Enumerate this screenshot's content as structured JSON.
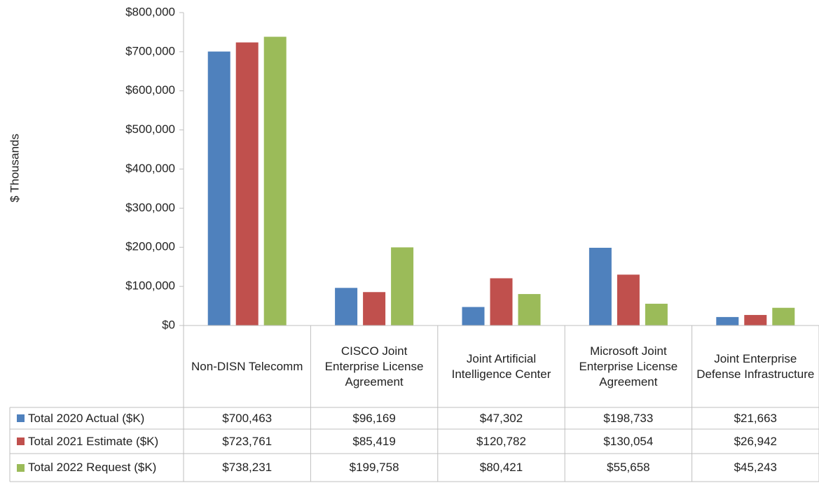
{
  "chart_data": {
    "type": "bar",
    "y_label": "$ Thousands",
    "categories": [
      "Non-DISN Telecomm",
      "CISCO Joint Enterprise License Agreement",
      "Joint Artificial Intelligence Center",
      "Microsoft Joint Enterprise License Agreement",
      "Joint Enterprise Defense Infrastructure"
    ],
    "series": [
      {
        "name": "Total 2020 Actual ($K)",
        "color": "#4f81bd",
        "values": [
          700463,
          96169,
          47302,
          198733,
          21663
        ],
        "value_labels": [
          "$700,463",
          "$96,169",
          "$47,302",
          "$198,733",
          "$21,663"
        ]
      },
      {
        "name": "Total 2021 Estimate ($K)",
        "color": "#c0504d",
        "values": [
          723761,
          85419,
          120782,
          130054,
          26942
        ],
        "value_labels": [
          "$723,761",
          "$85,419",
          "$120,782",
          "$130,054",
          "$26,942"
        ]
      },
      {
        "name": "Total 2022 Request ($K)",
        "color": "#9bbb59",
        "values": [
          738231,
          199758,
          80421,
          55658,
          45243
        ],
        "value_labels": [
          "$738,231",
          "$199,758",
          "$80,421",
          "$55,658",
          "$45,243"
        ]
      }
    ],
    "ylim": [
      0,
      800000
    ],
    "yticks": [
      {
        "value": 0,
        "label": "$0"
      },
      {
        "value": 100000,
        "label": "$100,000"
      },
      {
        "value": 200000,
        "label": "$200,000"
      },
      {
        "value": 300000,
        "label": "$300,000"
      },
      {
        "value": 400000,
        "label": "$400,000"
      },
      {
        "value": 500000,
        "label": "$500,000"
      },
      {
        "value": 600000,
        "label": "$600,000"
      },
      {
        "value": 700000,
        "label": "$700,000"
      },
      {
        "value": 800000,
        "label": "$800,000"
      }
    ],
    "grid": false
  }
}
